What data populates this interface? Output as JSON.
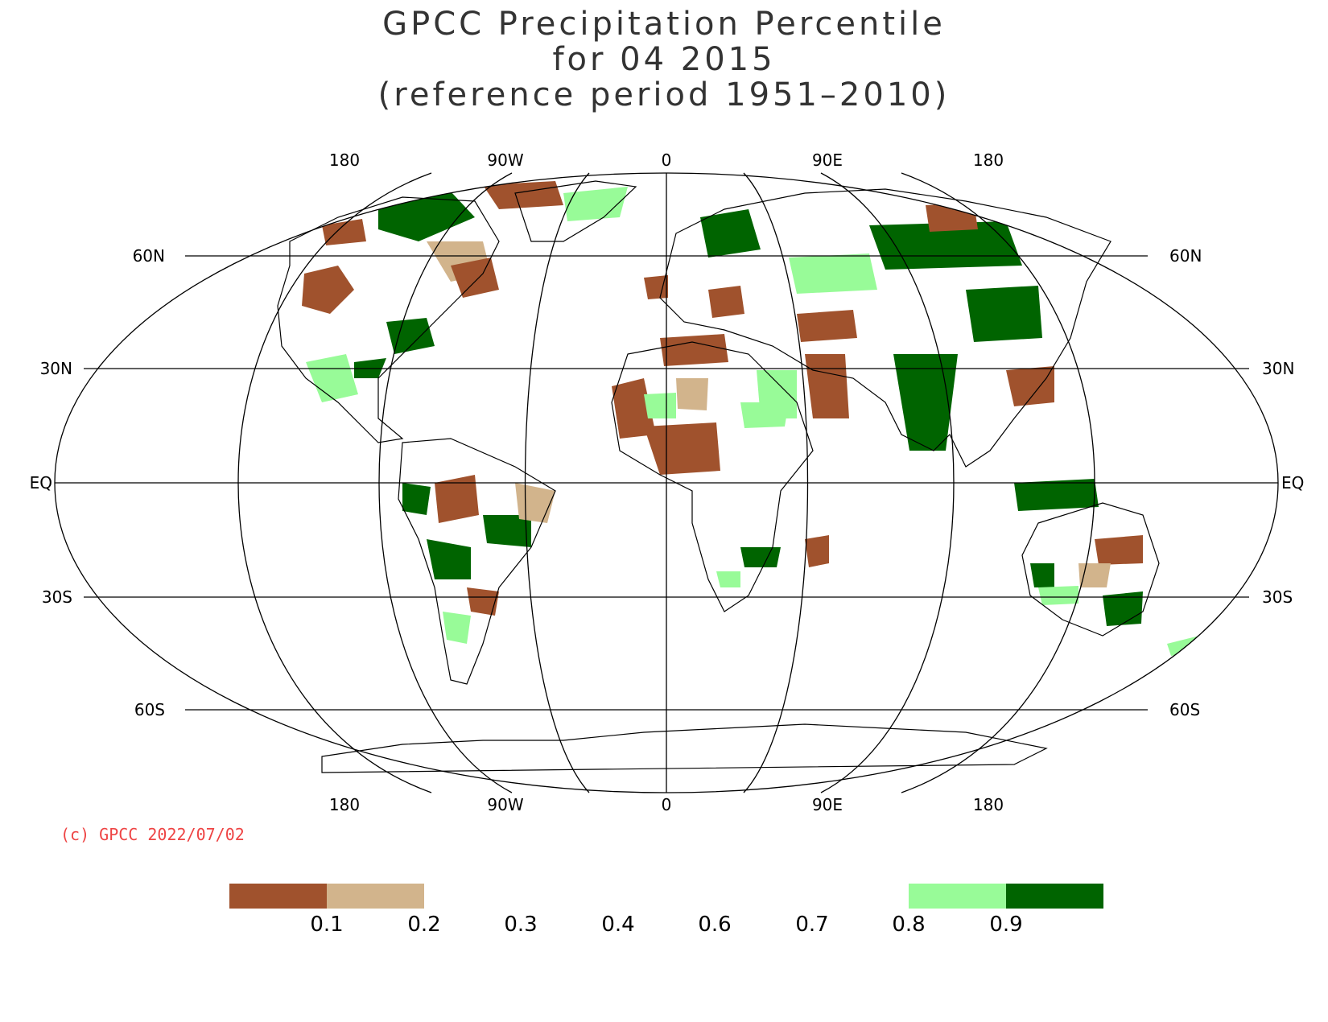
{
  "title": {
    "line1": "GPCC Precipitation Percentile",
    "line2": "for 04 2015",
    "line3": "(reference period 1951–2010)"
  },
  "lon_labels_top": [
    "180",
    "90W",
    "0",
    "90E",
    "180"
  ],
  "lon_labels_bottom": [
    "180",
    "90W",
    "0",
    "90E",
    "180"
  ],
  "lat_labels_left": [
    "60N",
    "30N",
    "EQ",
    "30S",
    "60S"
  ],
  "lat_labels_right": [
    "60N",
    "30N",
    "EQ",
    "30S",
    "60S"
  ],
  "copyright": "(c) GPCC 2022/07/02",
  "colors": {
    "very_dry": "#a0522d",
    "dry": "#d2b48c",
    "wet": "#98fb98",
    "very_wet": "#006400",
    "copyright": "#ee4444"
  },
  "legend": {
    "tick_labels": [
      "0.1",
      "0.2",
      "0.3",
      "0.4",
      "0.6",
      "0.7",
      "0.8",
      "0.9"
    ],
    "filled_classes": [
      "very_dry",
      "dry",
      "wet",
      "very_wet"
    ]
  }
}
